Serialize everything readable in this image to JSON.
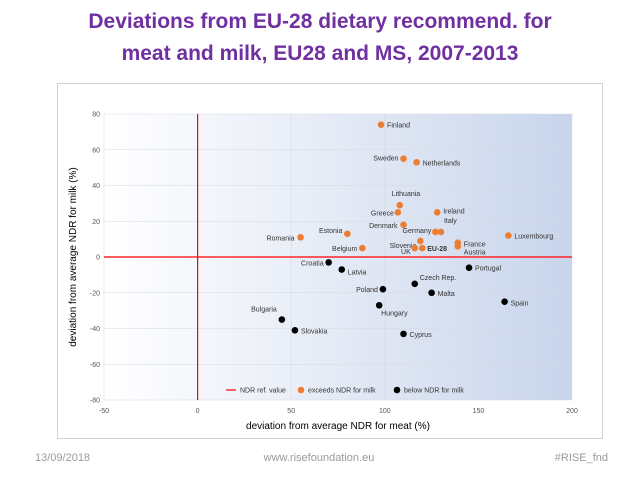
{
  "slide": {
    "title": "Deviations from EU-28 dietary recommend. for\nmeat and milk, EU28 and MS, 2007-2013"
  },
  "footer": {
    "date": "13/09/2018",
    "website": "www.risefoundation.eu",
    "hashtag": "#RISE_fnd"
  },
  "colors": {
    "title": "#7030a0",
    "exceeds": "#ed7d31",
    "below": "#000000",
    "reference_line": "#ff0000"
  },
  "chart_data": {
    "type": "scatter",
    "xlabel": "deviation from average NDR for meat (%)",
    "ylabel": "deviation from average NDR for milk (%)",
    "xlim": [
      -50,
      200
    ],
    "ylim": [
      -80,
      80
    ],
    "x_ticks": [
      "-50",
      "0",
      "50",
      "100",
      "150",
      "200"
    ],
    "y_ticks": [
      "80",
      "60",
      "40",
      "20",
      "0",
      "-20",
      "-40",
      "-60",
      "-80"
    ],
    "reference_lines": {
      "x": 0,
      "y": 0
    },
    "legend": [
      {
        "label": "NDR ref. value",
        "marker": "line"
      },
      {
        "label": "exceeds NDR for milk",
        "marker": "orange-dot"
      },
      {
        "label": "below NDR for milk",
        "marker": "black-dot"
      }
    ],
    "series": [
      {
        "name": "exceeds NDR for milk",
        "points": [
          {
            "label": "Finland",
            "x": 98,
            "y": 74
          },
          {
            "label": "Sweden",
            "x": 110,
            "y": 55
          },
          {
            "label": "Netherlands",
            "x": 117,
            "y": 53
          },
          {
            "label": "Lithuania",
            "x": 108,
            "y": 29
          },
          {
            "label": "Greece",
            "x": 107,
            "y": 25
          },
          {
            "label": "Ireland",
            "x": 128,
            "y": 25
          },
          {
            "label": "Denmark",
            "x": 110,
            "y": 18
          },
          {
            "label": "Estonia",
            "x": 80,
            "y": 13
          },
          {
            "label": "Romania",
            "x": 55,
            "y": 11
          },
          {
            "label": "Italy",
            "x": 130,
            "y": 14
          },
          {
            "label": "Germany",
            "x": 127,
            "y": 14
          },
          {
            "label": "Slovenia",
            "x": 119,
            "y": 9
          },
          {
            "label": "France",
            "x": 139,
            "y": 8
          },
          {
            "label": "Luxembourg",
            "x": 166,
            "y": 12
          },
          {
            "label": "Belgium",
            "x": 88,
            "y": 5
          },
          {
            "label": "UK",
            "x": 116,
            "y": 5
          },
          {
            "label": "EU-28",
            "x": 120,
            "y": 5
          },
          {
            "label": "Austria",
            "x": 139,
            "y": 6
          }
        ]
      },
      {
        "name": "below NDR for milk",
        "points": [
          {
            "label": "Croatia",
            "x": 70,
            "y": -3
          },
          {
            "label": "Latvia",
            "x": 77,
            "y": -7
          },
          {
            "label": "Portugal",
            "x": 145,
            "y": -6
          },
          {
            "label": "Czech Rep.",
            "x": 116,
            "y": -15
          },
          {
            "label": "Poland",
            "x": 99,
            "y": -18
          },
          {
            "label": "Malta",
            "x": 125,
            "y": -20
          },
          {
            "label": "Spain",
            "x": 164,
            "y": -25
          },
          {
            "label": "Hungary",
            "x": 97,
            "y": -27
          },
          {
            "label": "Bulgaria",
            "x": 45,
            "y": -35
          },
          {
            "label": "Slovakia",
            "x": 52,
            "y": -41
          },
          {
            "label": "Cyprus",
            "x": 110,
            "y": -43
          }
        ]
      }
    ]
  }
}
